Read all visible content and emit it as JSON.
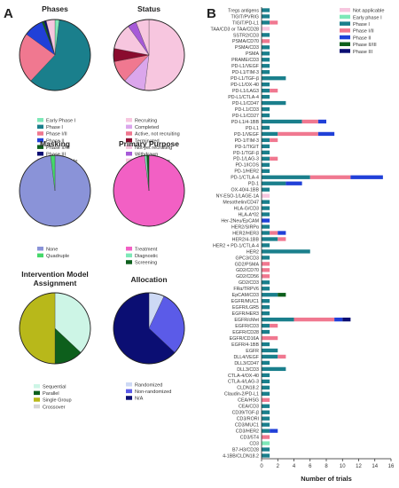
{
  "panels": {
    "a": "A",
    "b": "B"
  },
  "colors": {
    "teal": "#1a7f8c",
    "salmon": "#f07890",
    "pink_light": "#f7c6df",
    "green_light": "#7ee8b8",
    "blue_royal": "#2040d8",
    "navy": "#0b0e73",
    "maroon": "#8a0b2e",
    "purple": "#a65ad8",
    "lavender": "#dba6ec",
    "periwinkle": "#8a93d8",
    "green_bright": "#45d86a",
    "magenta": "#f260c4",
    "green_dark": "#0d5f1c",
    "olive": "#b8b81a",
    "mint_light": "#cdf5e6",
    "gray_light": "#d6d6d6"
  },
  "chart_data": [
    {
      "type": "pie",
      "title": "Phases",
      "slices": [
        {
          "label": "Early Phase I",
          "value": 2,
          "color": "#7ee8b8"
        },
        {
          "label": "Phase I",
          "value": 60,
          "color": "#1a7f8c"
        },
        {
          "label": "Phase I/II",
          "value": 23,
          "color": "#f07890"
        },
        {
          "label": "Phase II",
          "value": 9,
          "color": "#2040d8"
        },
        {
          "label": "Phase II/III",
          "value": 1,
          "color": "#0d5f1c"
        },
        {
          "label": "Phase III",
          "value": 1,
          "color": "#0b0e73"
        },
        {
          "label": "Not applicable",
          "value": 4,
          "color": "#f7c6df"
        }
      ]
    },
    {
      "type": "pie",
      "title": "Status",
      "slices": [
        {
          "label": "Recruiting",
          "value": 52,
          "color": "#f7c6df"
        },
        {
          "label": "Completed",
          "value": 10,
          "color": "#dba6ec"
        },
        {
          "label": "Active, not recruiting",
          "value": 10,
          "color": "#f07890"
        },
        {
          "label": "Terminated",
          "value": 6,
          "color": "#8a0b2e"
        },
        {
          "label": "Not yet recruiting",
          "value": 12,
          "color": "#f7c6df"
        },
        {
          "label": "Withdrawn",
          "value": 4,
          "color": "#a65ad8"
        },
        {
          "label": "Unknown status",
          "value": 6,
          "color": "#f7c6df"
        }
      ]
    },
    {
      "type": "pie",
      "title": "Masking",
      "slices": [
        {
          "label": "None",
          "value": 98,
          "color": "#8a93d8"
        },
        {
          "label": "Quadruple",
          "value": 2,
          "color": "#45d86a"
        }
      ]
    },
    {
      "type": "pie",
      "title": "Primary Purpose",
      "slices": [
        {
          "label": "Treatment",
          "value": 98,
          "color": "#f260c4"
        },
        {
          "label": "Diagnostic",
          "value": 1,
          "color": "#7ee8b8"
        },
        {
          "label": "Screening",
          "value": 1,
          "color": "#0d5f1c"
        }
      ]
    },
    {
      "type": "pie",
      "title": "Intervention Model Assignment",
      "slices": [
        {
          "label": "Sequential",
          "value": 37,
          "color": "#cdf5e6"
        },
        {
          "label": "Parallel",
          "value": 13,
          "color": "#0d5f1c"
        },
        {
          "label": "Single Group",
          "value": 50,
          "color": "#b8b81a"
        },
        {
          "label": "Crossover",
          "value": 0,
          "color": "#d6d6d6"
        }
      ]
    },
    {
      "type": "pie",
      "title": "Allocation",
      "slices": [
        {
          "label": "Randomized",
          "value": 7,
          "color": "#cdd9f5"
        },
        {
          "label": "Non-randomized",
          "value": 30,
          "color": "#5b5be8"
        },
        {
          "label": "N/A",
          "value": 63,
          "color": "#0b0e73"
        }
      ]
    },
    {
      "type": "bar",
      "orientation": "horizontal",
      "stacked": true,
      "xlabel": "Number of trials",
      "xlim": [
        0,
        16
      ],
      "xticks": [
        0,
        2,
        4,
        6,
        8,
        10,
        12,
        14,
        16
      ],
      "series": [
        {
          "name": "Not applicable",
          "color": "#f7c6df"
        },
        {
          "name": "Early phase I",
          "color": "#7ee8b8"
        },
        {
          "name": "Phase I",
          "color": "#1a7f8c"
        },
        {
          "name": "Phase I/II",
          "color": "#f07890"
        },
        {
          "name": "Phase II",
          "color": "#2040d8"
        },
        {
          "name": "Phase II/III",
          "color": "#0d5f1c"
        },
        {
          "name": "Phase III",
          "color": "#0b0e73"
        }
      ],
      "categories": [
        {
          "label": "Tregs antigens",
          "values": [
            0,
            0,
            1,
            0,
            0,
            0,
            0
          ]
        },
        {
          "label": "TIGIT/PVRIG",
          "values": [
            0,
            0,
            1,
            0,
            0,
            0,
            0
          ]
        },
        {
          "label": "TIGIT/PD-L1",
          "values": [
            0,
            0,
            1,
            1,
            0,
            0,
            0
          ]
        },
        {
          "label": "TAA/CD3 or TAA/CD28",
          "values": [
            1,
            0,
            0,
            0,
            0,
            0,
            0
          ]
        },
        {
          "label": "SSTR2/CD3",
          "values": [
            0,
            0,
            1,
            0,
            0,
            0,
            0
          ]
        },
        {
          "label": "PSMA/CD70",
          "values": [
            0,
            0,
            0,
            1,
            0,
            0,
            0
          ]
        },
        {
          "label": "PSMA/CD3",
          "values": [
            0,
            0,
            1,
            0,
            0,
            0,
            0
          ]
        },
        {
          "label": "PSMA",
          "values": [
            0,
            0,
            1,
            0,
            0,
            0,
            0
          ]
        },
        {
          "label": "PRAME/CD3",
          "values": [
            0,
            0,
            1,
            0,
            0,
            0,
            0
          ]
        },
        {
          "label": "PD-L1/VEGF",
          "values": [
            0,
            0,
            1,
            0,
            0,
            0,
            0
          ]
        },
        {
          "label": "PD-L1/TIM-3",
          "values": [
            0,
            0,
            1,
            0,
            0,
            0,
            0
          ]
        },
        {
          "label": "PD-L1/TGF-β",
          "values": [
            0,
            0,
            3,
            0,
            0,
            0,
            0
          ]
        },
        {
          "label": "PD-L1/OX-40",
          "values": [
            0,
            0,
            1,
            0,
            0,
            0,
            0
          ]
        },
        {
          "label": "PD-L1/LAG3",
          "values": [
            0,
            0,
            1,
            1,
            0,
            0,
            0
          ]
        },
        {
          "label": "PD-L1/CTLA-4",
          "values": [
            0,
            0,
            1,
            0,
            0,
            0,
            0
          ]
        },
        {
          "label": "PD-L1/CD47",
          "values": [
            0,
            0,
            3,
            0,
            0,
            0,
            0
          ]
        },
        {
          "label": "PD-L1/CD3",
          "values": [
            0,
            0,
            1,
            0,
            0,
            0,
            0
          ]
        },
        {
          "label": "PD-L1/CD27",
          "values": [
            0,
            0,
            1,
            0,
            0,
            0,
            0
          ]
        },
        {
          "label": "PD-L1/4-1BB",
          "values": [
            0,
            0,
            5,
            2,
            1,
            0,
            0
          ]
        },
        {
          "label": "PD-L1",
          "values": [
            0,
            0,
            1,
            0,
            0,
            0,
            0
          ]
        },
        {
          "label": "PD-1/VEGF",
          "values": [
            0,
            0,
            2,
            5,
            2,
            0,
            0
          ]
        },
        {
          "label": "PD-1/TIM-3",
          "values": [
            0,
            0,
            1,
            1,
            0,
            0,
            0
          ]
        },
        {
          "label": "PD-1/TIGIT",
          "values": [
            0,
            0,
            1,
            0,
            0,
            0,
            0
          ]
        },
        {
          "label": "PD-1/TGF-β",
          "values": [
            0,
            0,
            1,
            0,
            0,
            0,
            0
          ]
        },
        {
          "label": "PD-1/LAG-3",
          "values": [
            0,
            0,
            1,
            1,
            0,
            0,
            0
          ]
        },
        {
          "label": "PD-1/ICOS",
          "values": [
            0,
            0,
            1,
            0,
            0,
            0,
            0
          ]
        },
        {
          "label": "PD-1/HER2",
          "values": [
            0,
            0,
            1,
            0,
            0,
            0,
            0
          ]
        },
        {
          "label": "PD-1/CTLA-4",
          "values": [
            0,
            0,
            6,
            5,
            4,
            0,
            0
          ]
        },
        {
          "label": "PD-1",
          "values": [
            0,
            0,
            3,
            0,
            2,
            0,
            0
          ]
        },
        {
          "label": "OX-40/4-1BB",
          "values": [
            0,
            0,
            1,
            0,
            0,
            0,
            0
          ]
        },
        {
          "label": "NY-ESO-1/LAGE-1A",
          "values": [
            1,
            0,
            0,
            0,
            0,
            0,
            0
          ]
        },
        {
          "label": "Mesothelin/CD47",
          "values": [
            0,
            0,
            1,
            0,
            0,
            0,
            0
          ]
        },
        {
          "label": "HLA-G/CD3",
          "values": [
            0,
            0,
            1,
            0,
            0,
            0,
            0
          ]
        },
        {
          "label": "HLA-A*02",
          "values": [
            0,
            0,
            1,
            0,
            0,
            0,
            0
          ]
        },
        {
          "label": "Her-2Neu/EpCAM",
          "values": [
            0,
            0,
            0,
            0,
            1,
            0,
            0
          ]
        },
        {
          "label": "HER2/SIRPα",
          "values": [
            0,
            0,
            1,
            0,
            0,
            0,
            0
          ]
        },
        {
          "label": "HER2/HER3",
          "values": [
            0,
            0,
            1,
            1,
            1,
            0,
            0
          ]
        },
        {
          "label": "HER2/4-1BB",
          "values": [
            0,
            0,
            2,
            1,
            0,
            0,
            0
          ]
        },
        {
          "label": "HER2 + PD-1/CTLA-4",
          "values": [
            0,
            0,
            1,
            0,
            0,
            0,
            0
          ]
        },
        {
          "label": "HER2",
          "values": [
            0,
            0,
            6,
            0,
            0,
            0,
            0
          ]
        },
        {
          "label": "GPC3/CD3",
          "values": [
            0,
            0,
            1,
            0,
            0,
            0,
            0
          ]
        },
        {
          "label": "GD2/PSMA",
          "values": [
            0,
            0,
            0,
            1,
            0,
            0,
            0
          ]
        },
        {
          "label": "GD2/CD70",
          "values": [
            0,
            0,
            0,
            1,
            0,
            0,
            0
          ]
        },
        {
          "label": "GD2/CD56",
          "values": [
            0,
            0,
            0,
            1,
            0,
            0,
            0
          ]
        },
        {
          "label": "GD2/CD3",
          "values": [
            0,
            0,
            1,
            0,
            0,
            0,
            0
          ]
        },
        {
          "label": "FRα/TRPV6",
          "values": [
            0,
            0,
            1,
            0,
            0,
            0,
            0
          ]
        },
        {
          "label": "EpCAM/CD3",
          "values": [
            0,
            0,
            2,
            0,
            0,
            1,
            0
          ]
        },
        {
          "label": "EGFR/MUC1",
          "values": [
            0,
            0,
            1,
            0,
            0,
            0,
            0
          ]
        },
        {
          "label": "EGFR/LGR5",
          "values": [
            0,
            0,
            1,
            0,
            0,
            0,
            0
          ]
        },
        {
          "label": "EGFR/HER3",
          "values": [
            0,
            0,
            1,
            0,
            0,
            0,
            0
          ]
        },
        {
          "label": "EGFR/cMet",
          "values": [
            0,
            0,
            4,
            5,
            1,
            0,
            1
          ]
        },
        {
          "label": "EGFR/CD3",
          "values": [
            0,
            0,
            1,
            1,
            0,
            0,
            0
          ]
        },
        {
          "label": "EGFR/CD28",
          "values": [
            0,
            0,
            1,
            0,
            0,
            0,
            0
          ]
        },
        {
          "label": "EGFR/CD16A",
          "values": [
            0,
            0,
            0,
            2,
            0,
            0,
            0
          ]
        },
        {
          "label": "EGFR/4-1BB",
          "values": [
            0,
            0,
            1,
            0,
            0,
            0,
            0
          ]
        },
        {
          "label": "EGFR",
          "values": [
            0,
            0,
            2,
            0,
            0,
            0,
            0
          ]
        },
        {
          "label": "DLL4/VEGF",
          "values": [
            0,
            0,
            2,
            1,
            0,
            0,
            0
          ]
        },
        {
          "label": "DLL3/CD47",
          "values": [
            0,
            0,
            1,
            0,
            0,
            0,
            0
          ]
        },
        {
          "label": "DLL3/CD3",
          "values": [
            0,
            0,
            3,
            0,
            0,
            0,
            0
          ]
        },
        {
          "label": "CTLA-4/OX-40",
          "values": [
            0,
            0,
            1,
            0,
            0,
            0,
            0
          ]
        },
        {
          "label": "CTLA-4/LAG-3",
          "values": [
            0,
            0,
            1,
            0,
            0,
            0,
            0
          ]
        },
        {
          "label": "CLDN18.2",
          "values": [
            0,
            0,
            1,
            0,
            0,
            0,
            0
          ]
        },
        {
          "label": "Claudin-2/PD-L1",
          "values": [
            0,
            0,
            1,
            0,
            0,
            0,
            0
          ]
        },
        {
          "label": "CEA/HSG",
          "values": [
            0,
            0,
            0,
            1,
            0,
            0,
            0
          ]
        },
        {
          "label": "CEA/CD3",
          "values": [
            0,
            0,
            1,
            0,
            0,
            0,
            0
          ]
        },
        {
          "label": "CD39/TGF-β",
          "values": [
            0,
            0,
            1,
            0,
            0,
            0,
            0
          ]
        },
        {
          "label": "CD3/RORI",
          "values": [
            0,
            0,
            1,
            0,
            0,
            0,
            0
          ]
        },
        {
          "label": "CD3/MUC1",
          "values": [
            0,
            0,
            1,
            0,
            0,
            0,
            0
          ]
        },
        {
          "label": "CD3/HER2",
          "values": [
            0,
            0,
            1,
            0,
            1,
            0,
            0
          ]
        },
        {
          "label": "CD3/5T4",
          "values": [
            0,
            0,
            0,
            1,
            0,
            0,
            0
          ]
        },
        {
          "label": "CD3",
          "values": [
            0,
            1,
            0,
            0,
            0,
            0,
            0
          ]
        },
        {
          "label": "B7-H3/CD28",
          "values": [
            0,
            0,
            1,
            0,
            0,
            0,
            0
          ]
        },
        {
          "label": "4-1BB/CLDN18.2",
          "values": [
            0,
            0,
            1,
            0,
            0,
            0,
            0
          ]
        }
      ]
    }
  ]
}
